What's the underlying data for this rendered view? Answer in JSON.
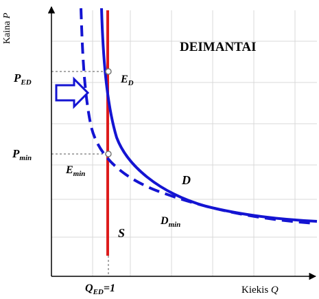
{
  "diagram": {
    "title": "DEIMANTAI",
    "y_axis_label": {
      "main": "Kaina ",
      "var": "P"
    },
    "x_axis_label": {
      "main": "Kiekis ",
      "var": "Q"
    },
    "labels": {
      "p_ed": {
        "base": "P",
        "sub": "ED"
      },
      "p_min": {
        "base": "P",
        "sub": "min"
      },
      "e_d": {
        "base": "E",
        "sub": "D"
      },
      "e_min": {
        "base": "E",
        "sub": "min"
      },
      "d": "D",
      "d_min": {
        "base": "D",
        "sub": "min"
      },
      "s": "S",
      "q_ed": {
        "base": "Q",
        "sub": "ED",
        "suffix": "=1"
      }
    },
    "colors": {
      "demand": "#1414d2",
      "supply": "#dd1c1c",
      "grid": "#d9d9d9",
      "axis": "#000000",
      "arrow": "#1414d2"
    }
  }
}
